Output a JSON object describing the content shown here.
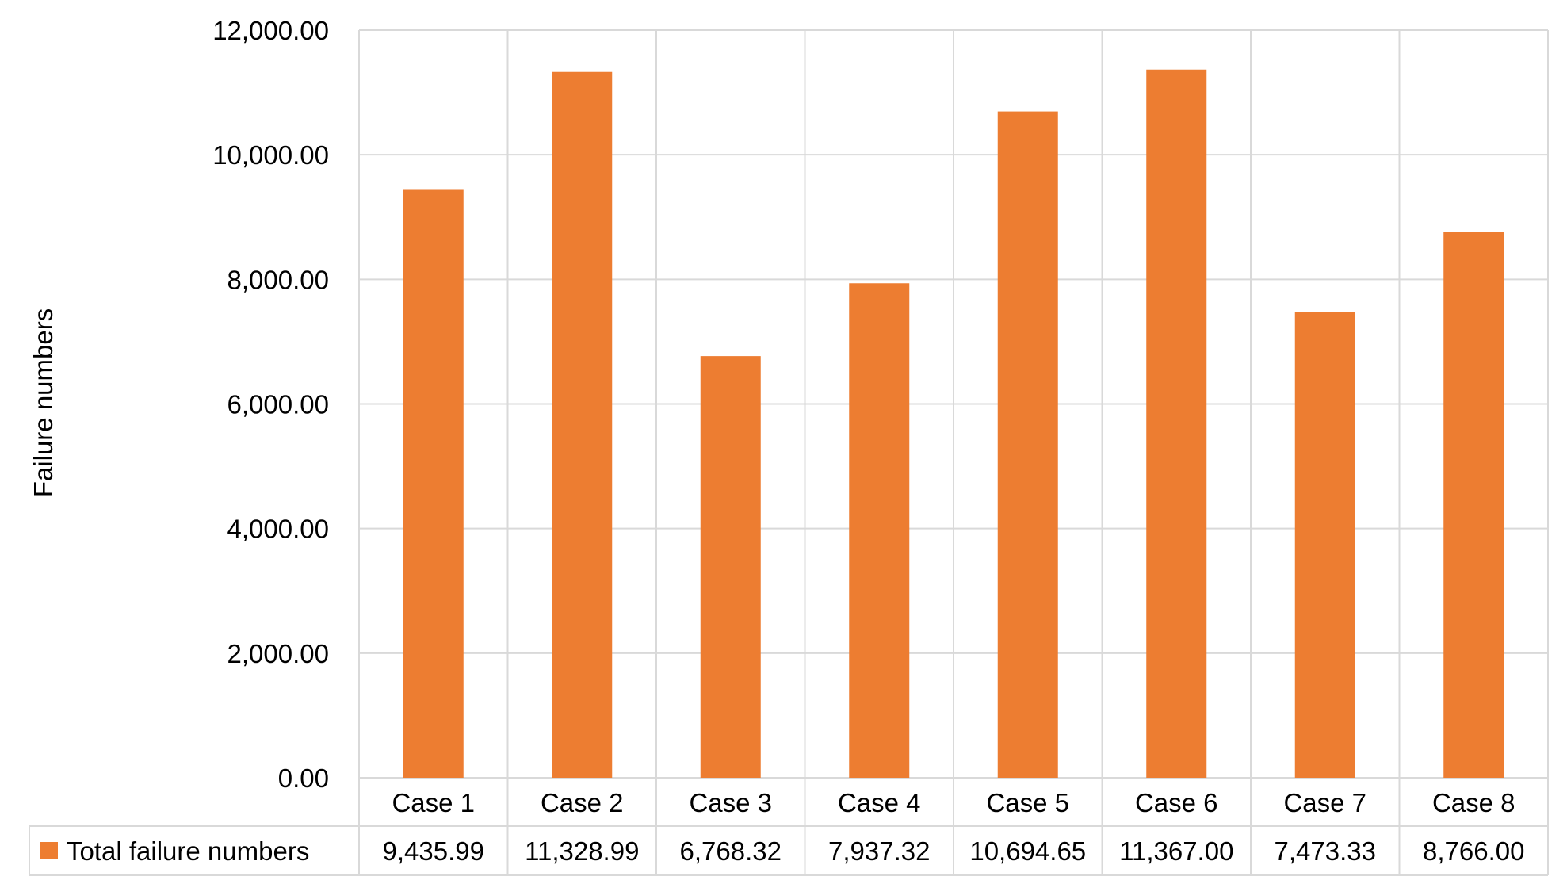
{
  "chart_data": {
    "type": "bar",
    "categories": [
      "Case 1",
      "Case 2",
      "Case 3",
      "Case 4",
      "Case 5",
      "Case 6",
      "Case 7",
      "Case 8"
    ],
    "series": [
      {
        "name": "Total failure numbers",
        "values": [
          9435.99,
          11328.99,
          6768.32,
          7937.32,
          10694.65,
          11367.0,
          7473.33,
          8766.0
        ],
        "value_labels": [
          "9,435.99",
          "11,328.99",
          "6,768.32",
          "7,937.32",
          "10,694.65",
          "11,367.00",
          "7,473.33",
          "8,766.00"
        ],
        "color": "#ed7d31"
      }
    ],
    "ylabel": "Failure numbers",
    "ylim": [
      0,
      12000
    ],
    "yticks": [
      0,
      2000,
      4000,
      6000,
      8000,
      10000,
      12000
    ],
    "ytick_labels": [
      "0.00",
      "2,000.00",
      "4,000.00",
      "6,000.00",
      "8,000.00",
      "10,000.00",
      "12,000.00"
    ],
    "grid": true,
    "legend": "data-table"
  }
}
